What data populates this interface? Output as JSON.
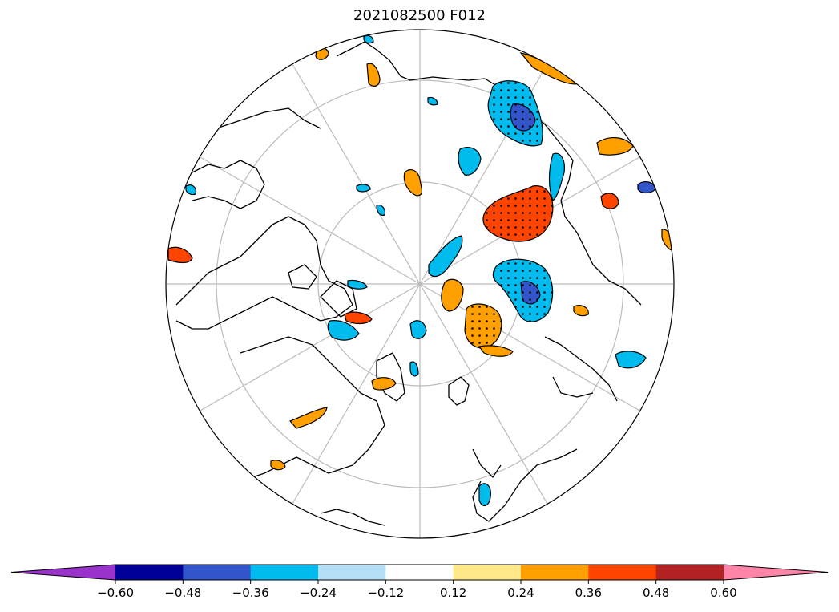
{
  "map": {
    "title": "2021082500 F012",
    "projection": "north-polar-stereographic",
    "features": [
      "coastlines",
      "lat-lon-gridlines",
      "filled-anomaly-contours",
      "significance-stippling"
    ]
  },
  "colorbar": {
    "extend": "both",
    "colors": [
      "#9933cc",
      "#000099",
      "#3355cc",
      "#00bbee",
      "#b3e0f7",
      "#ffffff",
      "#ffe88a",
      "#ffa000",
      "#ff4400",
      "#b22222",
      "#ff85a8"
    ],
    "tick_labels": [
      "−0.60",
      "−0.48",
      "−0.36",
      "−0.24",
      "−0.12",
      "0.12",
      "0.24",
      "0.36",
      "0.48",
      "0.60"
    ]
  }
}
